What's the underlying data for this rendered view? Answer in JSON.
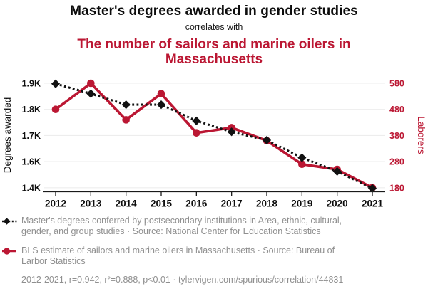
{
  "header": {
    "title": "Master's degrees awarded in gender studies",
    "connector": "correlates with",
    "counterpart_title": "The number of sailors and marine oilers in Massachusetts"
  },
  "colors": {
    "accent_red": "#bb1733",
    "series_black": "#111111",
    "grid": "#ededed",
    "axis_line": "#1a1a1a",
    "legend_text": "#8f8f8f"
  },
  "chart_data": {
    "type": "line",
    "x": [
      2012,
      2013,
      2014,
      2015,
      2016,
      2017,
      2018,
      2019,
      2020,
      2021
    ],
    "x_tick_labels": [
      "2012",
      "2013",
      "2014",
      "2015",
      "2016",
      "2017",
      "2018",
      "2019",
      "2020",
      "2021"
    ],
    "series": [
      {
        "name": "masters-degrees",
        "axis": "left",
        "color": "#111111",
        "line_style": "dotted",
        "marker": "diamond",
        "values": [
          1898,
          1860,
          1818,
          1818,
          1756,
          1714,
          1682,
          1615,
          1525,
          1395
        ]
      },
      {
        "name": "sailors-marine-oilers",
        "axis": "right",
        "color": "#bb1733",
        "line_style": "solid",
        "marker": "circle",
        "values": [
          480,
          580,
          440,
          540,
          390,
          410,
          360,
          270,
          250,
          180
        ]
      }
    ],
    "left_axis": {
      "label": "Degrees awarded",
      "tick_labels": [
        "1.9K",
        "1.8K",
        "1.7K",
        "1.6K",
        "1.4K"
      ],
      "tick_values": [
        1900,
        1800,
        1700,
        1600,
        1400
      ]
    },
    "right_axis": {
      "label": "Laborers",
      "tick_labels": [
        "580",
        "480",
        "380",
        "280",
        "180"
      ],
      "tick_values": [
        580,
        480,
        380,
        280,
        180
      ]
    },
    "grid": true,
    "legend_position": "bottom"
  },
  "legend": {
    "items": [
      {
        "marker": "black-diamond-dotted-line",
        "label": "Master's degrees conferred by postsecondary institutions in Area, ethnic, cultural, gender, and group studies · Source: National Center for Education Statistics"
      },
      {
        "marker": "red-circle-solid-line",
        "label": "BLS estimate of sailors and marine oilers in Massachusetts · Source: Bureau of Larbor Statistics"
      }
    ]
  },
  "footer": {
    "stats": "2012-2021, r=0.942, r²=0.888, p<0.01 · tylervigen.com/spurious/correlation/44831"
  }
}
